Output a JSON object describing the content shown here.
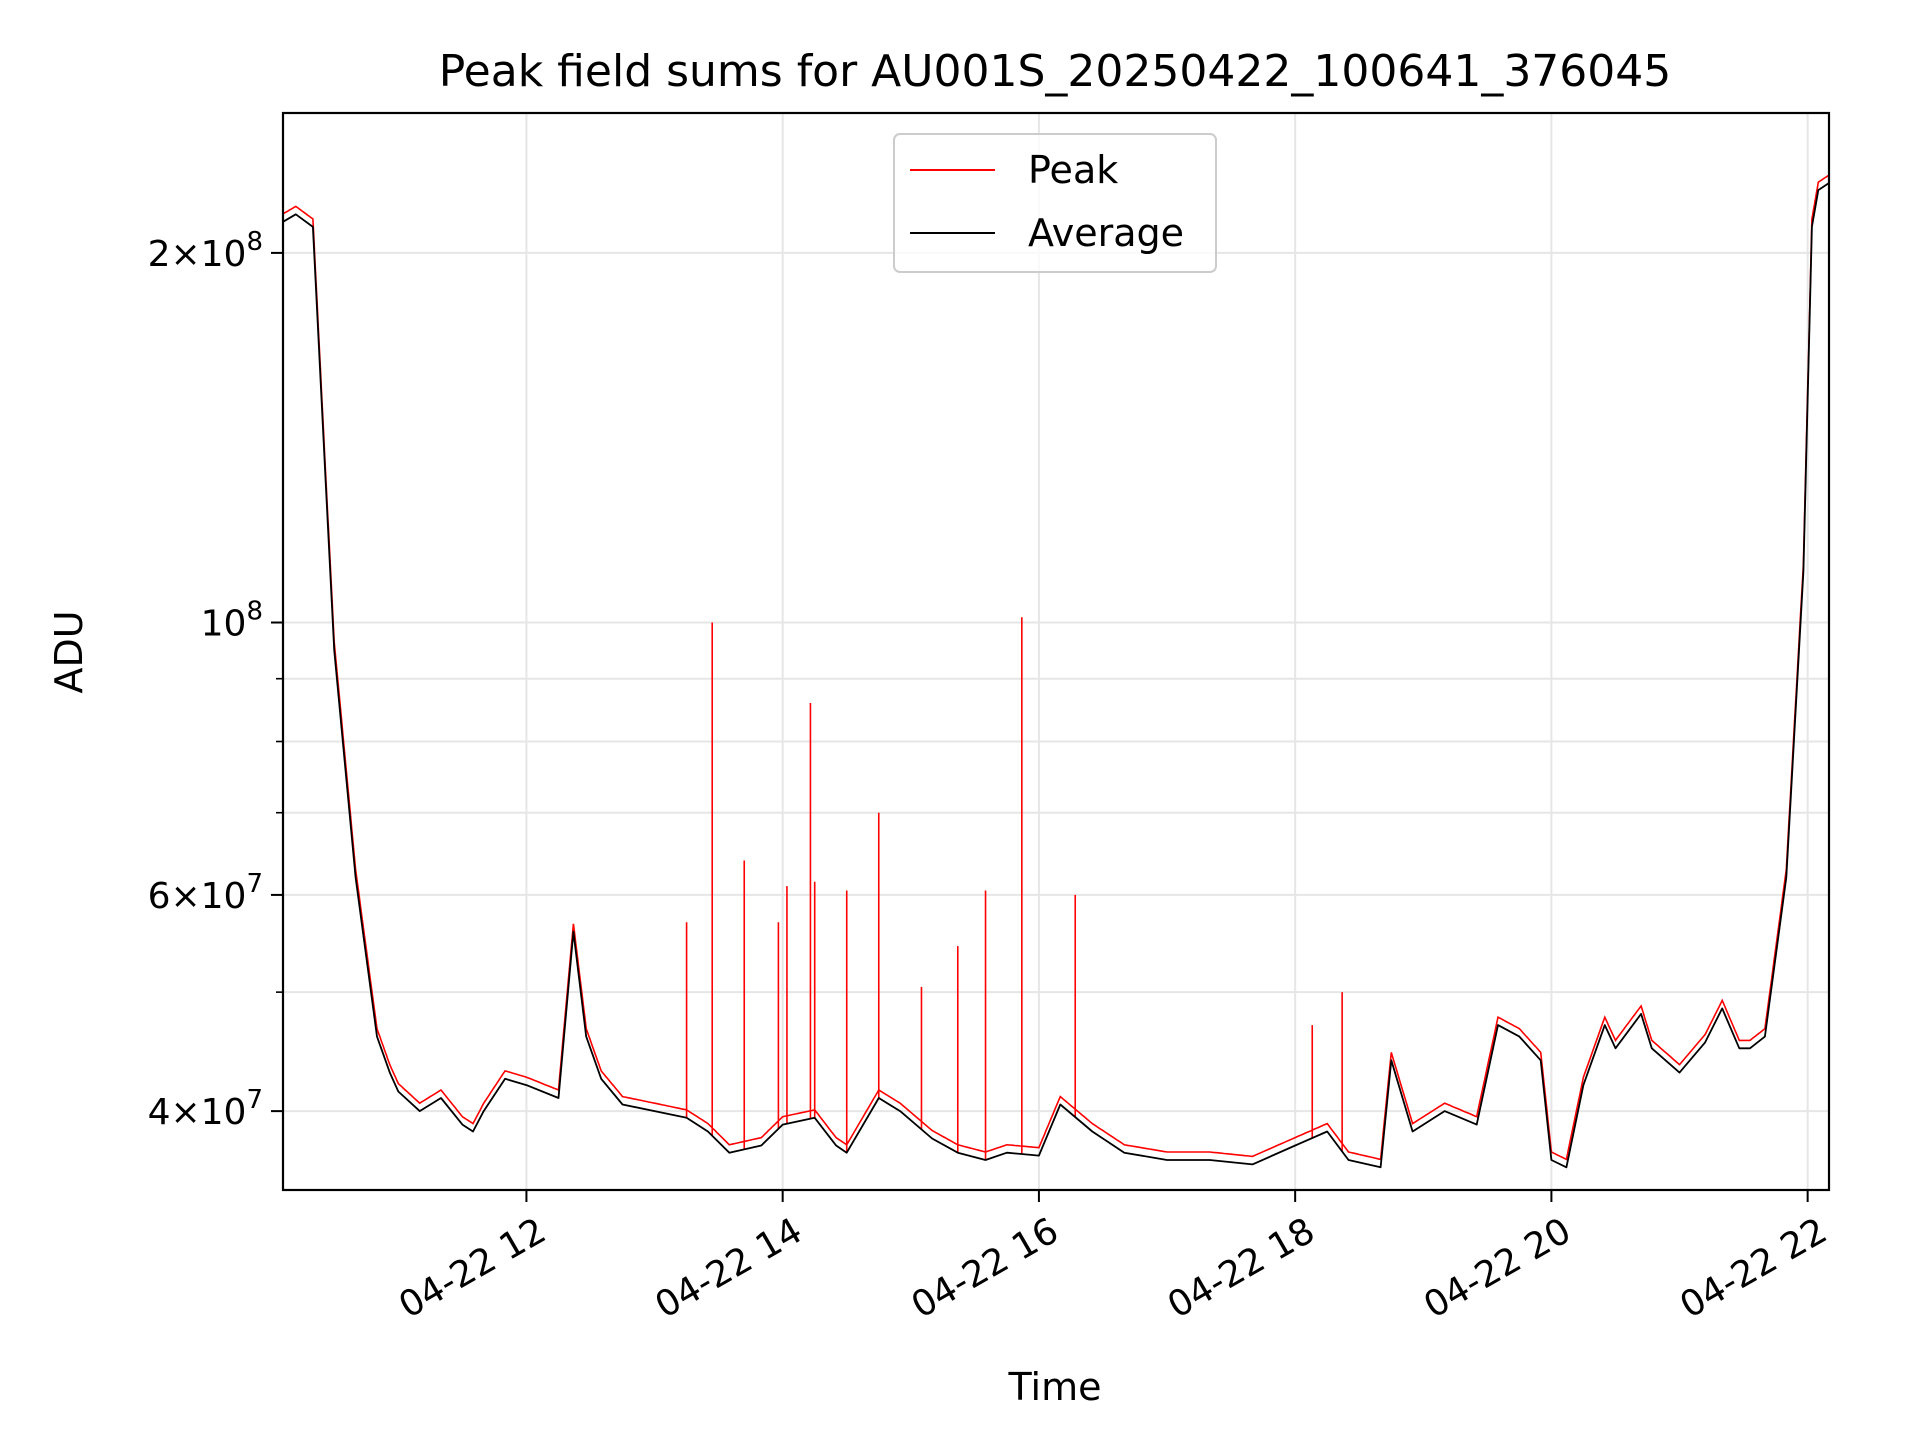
{
  "chart_data": {
    "type": "line",
    "title": "Peak field sums for AU001S_20250422_100641_376045",
    "xlabel": "Time",
    "ylabel": "ADU",
    "y_scale": "log",
    "ylim": [
      34500000,
      260000000
    ],
    "xlim": [
      "2025-04-22 10:06",
      "2025-04-22 22:10"
    ],
    "x_ticks": [
      {
        "value": "2025-04-22 12:00",
        "label": "04-22 12"
      },
      {
        "value": "2025-04-22 14:00",
        "label": "04-22 14"
      },
      {
        "value": "2025-04-22 16:00",
        "label": "04-22 16"
      },
      {
        "value": "2025-04-22 18:00",
        "label": "04-22 18"
      },
      {
        "value": "2025-04-22 20:00",
        "label": "04-22 20"
      },
      {
        "value": "2025-04-22 22:00",
        "label": "04-22 22"
      }
    ],
    "y_major_ticks": [
      {
        "value": 40000000,
        "mantissa": "4",
        "base": "10",
        "exp": "7"
      },
      {
        "value": 60000000,
        "mantissa": "6",
        "base": "10",
        "exp": "7"
      },
      {
        "value": 100000000,
        "mantissa": "",
        "base": "10",
        "exp": "8"
      },
      {
        "value": 200000000,
        "mantissa": "2",
        "base": "10",
        "exp": "8"
      }
    ],
    "y_minor_ticks": [
      50000000,
      70000000,
      80000000,
      90000000
    ],
    "grid": true,
    "legend": "upper center",
    "colors": {
      "peak": "#ff0000",
      "average": "#000000"
    },
    "series": [
      {
        "name": "Average",
        "color": "#000000",
        "x": [
          "2025-04-22 10:06",
          "2025-04-22 10:12",
          "2025-04-22 10:20",
          "2025-04-22 10:26",
          "2025-04-22 10:30",
          "2025-04-22 10:40",
          "2025-04-22 10:50",
          "2025-04-22 10:56",
          "2025-04-22 11:00",
          "2025-04-22 11:10",
          "2025-04-22 11:20",
          "2025-04-22 11:30",
          "2025-04-22 11:35",
          "2025-04-22 11:40",
          "2025-04-22 11:50",
          "2025-04-22 12:00",
          "2025-04-22 12:15",
          "2025-04-22 12:22",
          "2025-04-22 12:28",
          "2025-04-22 12:35",
          "2025-04-22 12:45",
          "2025-04-22 13:00",
          "2025-04-22 13:15",
          "2025-04-22 13:25",
          "2025-04-22 13:35",
          "2025-04-22 13:50",
          "2025-04-22 14:00",
          "2025-04-22 14:15",
          "2025-04-22 14:25",
          "2025-04-22 14:30",
          "2025-04-22 14:45",
          "2025-04-22 14:55",
          "2025-04-22 15:10",
          "2025-04-22 15:22",
          "2025-04-22 15:35",
          "2025-04-22 15:45",
          "2025-04-22 16:00",
          "2025-04-22 16:10",
          "2025-04-22 16:25",
          "2025-04-22 16:40",
          "2025-04-22 17:00",
          "2025-04-22 17:20",
          "2025-04-22 17:40",
          "2025-04-22 18:00",
          "2025-04-22 18:15",
          "2025-04-22 18:25",
          "2025-04-22 18:40",
          "2025-04-22 18:45",
          "2025-04-22 18:55",
          "2025-04-22 19:10",
          "2025-04-22 19:25",
          "2025-04-22 19:35",
          "2025-04-22 19:45",
          "2025-04-22 19:55",
          "2025-04-22 20:00",
          "2025-04-22 20:07",
          "2025-04-22 20:15",
          "2025-04-22 20:25",
          "2025-04-22 20:30",
          "2025-04-22 20:42",
          "2025-04-22 20:47",
          "2025-04-22 21:00",
          "2025-04-22 21:12",
          "2025-04-22 21:20",
          "2025-04-22 21:28",
          "2025-04-22 21:33",
          "2025-04-22 21:40",
          "2025-04-22 21:50",
          "2025-04-22 21:58",
          "2025-04-22 22:02",
          "2025-04-22 22:05",
          "2025-04-22 22:10"
        ],
        "values": [
          212000000,
          215000000,
          210000000,
          130000000,
          95000000,
          62000000,
          46000000,
          43000000,
          41500000,
          40000000,
          41000000,
          39000000,
          38500000,
          40000000,
          42500000,
          42000000,
          41000000,
          56000000,
          46000000,
          42500000,
          40500000,
          40000000,
          39500000,
          38500000,
          37000000,
          37500000,
          39000000,
          39500000,
          37500000,
          37000000,
          41000000,
          40000000,
          38000000,
          37000000,
          36500000,
          37000000,
          36800000,
          40500000,
          38500000,
          37000000,
          36500000,
          36500000,
          36200000,
          37500000,
          38500000,
          36500000,
          36000000,
          44000000,
          38500000,
          40000000,
          39000000,
          47000000,
          46000000,
          44000000,
          36500000,
          36000000,
          42000000,
          47000000,
          45000000,
          48000000,
          45000000,
          43000000,
          45500000,
          48500000,
          45000000,
          45000000,
          46000000,
          62000000,
          110000000,
          210000000,
          225000000,
          228000000
        ]
      },
      {
        "name": "Peak",
        "color": "#ff0000",
        "spikes": [
          {
            "x": "2025-04-22 13:15",
            "y": 57000000
          },
          {
            "x": "2025-04-22 13:27",
            "y": 100000000
          },
          {
            "x": "2025-04-22 13:42",
            "y": 64000000
          },
          {
            "x": "2025-04-22 13:58",
            "y": 57000000
          },
          {
            "x": "2025-04-22 14:02",
            "y": 61000000
          },
          {
            "x": "2025-04-22 14:13",
            "y": 86000000
          },
          {
            "x": "2025-04-22 14:15",
            "y": 61500000
          },
          {
            "x": "2025-04-22 14:30",
            "y": 60500000
          },
          {
            "x": "2025-04-22 14:45",
            "y": 70000000
          },
          {
            "x": "2025-04-22 15:05",
            "y": 50500000
          },
          {
            "x": "2025-04-22 15:22",
            "y": 54500000
          },
          {
            "x": "2025-04-22 15:35",
            "y": 60500000
          },
          {
            "x": "2025-04-22 15:52",
            "y": 101000000
          },
          {
            "x": "2025-04-22 16:17",
            "y": 60000000
          },
          {
            "x": "2025-04-22 18:08",
            "y": 47000000
          },
          {
            "x": "2025-04-22 18:22",
            "y": 50000000
          }
        ]
      }
    ]
  }
}
